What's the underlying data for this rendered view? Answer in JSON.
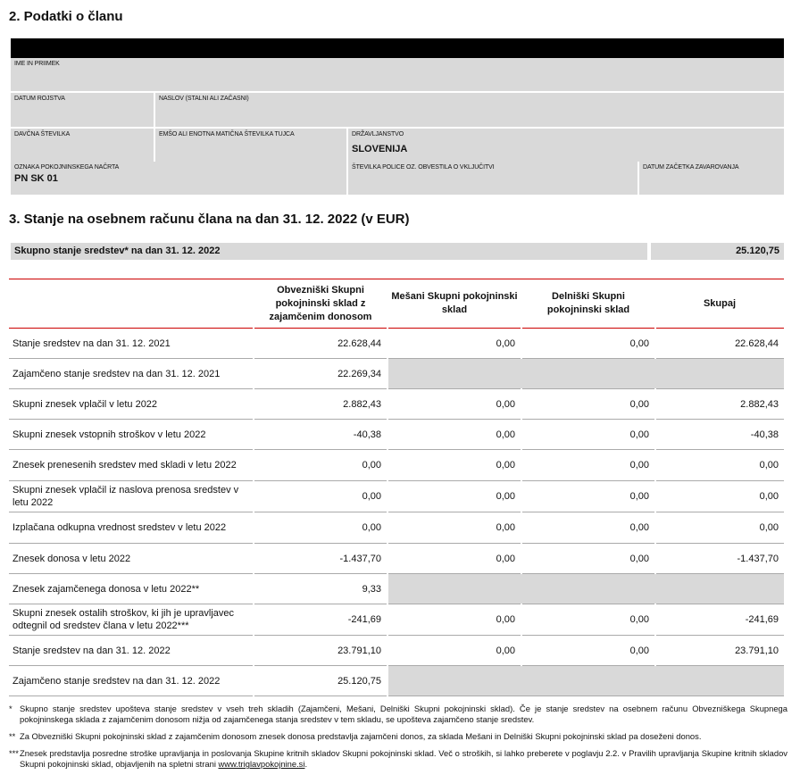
{
  "section2": {
    "title": "2.  Podatki o članu",
    "fields": {
      "name_label": "IME IN PRIIMEK",
      "birth_label": "DATUM ROJSTVA",
      "address_label": "NASLOV (STALNI ALI ZAČASNI)",
      "tax_label": "DAVČNA ŠTEVILKA",
      "emso_label": "EMŠO ALI ENOTNA MATIČNA ŠTEVILKA TUJCA",
      "citizenship_label": "DRŽAVLJANSTVO",
      "citizenship_value": "SLOVENIJA",
      "plan_label": "OZNAKA POKOJNINSKEGA NAČRTA",
      "plan_value": "PN SK 01",
      "policy_label": "ŠTEVILKA POLICE OZ. OBVESTILA O VKLJUČITVI",
      "start_label": "DATUM ZAČETKA ZAVAROVANJA"
    }
  },
  "section3": {
    "title": "3.  Stanje na osebnem računu člana na dan 31. 12. 2022 (v EUR)",
    "summary_label": "Skupno stanje sredstev* na dan 31. 12. 2022",
    "summary_value": "25.120,75",
    "columns": [
      "Obvezniški Skupni pokojninski sklad z zajamčenim donosom",
      "Mešani Skupni pokojninski sklad",
      "Delniški Skupni pokojninski sklad",
      "Skupaj"
    ],
    "rows": [
      {
        "label": "Stanje sredstev na dan 31. 12. 2021",
        "values": [
          "22.628,44",
          "0,00",
          "0,00",
          "22.628,44"
        ]
      },
      {
        "label": "Zajamčeno stanje sredstev na dan 31. 12. 2021",
        "values": [
          "22.269,34",
          "",
          "",
          ""
        ]
      },
      {
        "label": "Skupni znesek vplačil v letu 2022",
        "values": [
          "2.882,43",
          "0,00",
          "0,00",
          "2.882,43"
        ]
      },
      {
        "label": "Skupni znesek vstopnih stroškov v letu 2022",
        "values": [
          "-40,38",
          "0,00",
          "0,00",
          "-40,38"
        ]
      },
      {
        "label": "Znesek prenesenih sredstev med skladi v letu 2022",
        "values": [
          "0,00",
          "0,00",
          "0,00",
          "0,00"
        ]
      },
      {
        "label": "Skupni znesek vplačil iz naslova prenosa sredstev v letu 2022",
        "values": [
          "0,00",
          "0,00",
          "0,00",
          "0,00"
        ]
      },
      {
        "label": "Izplačana odkupna vrednost sredstev v letu 2022",
        "values": [
          "0,00",
          "0,00",
          "0,00",
          "0,00"
        ]
      },
      {
        "label": "Znesek donosa v letu 2022",
        "values": [
          "-1.437,70",
          "0,00",
          "0,00",
          "-1.437,70"
        ]
      },
      {
        "label": "Znesek zajamčenega donosa v letu 2022**",
        "values": [
          "9,33",
          "",
          "",
          ""
        ]
      },
      {
        "label": "Skupni znesek ostalih stroškov, ki jih je upravljavec odtegnil od sredstev člana v letu 2022***",
        "values": [
          "-241,69",
          "0,00",
          "0,00",
          "-241,69"
        ]
      },
      {
        "label": "Stanje sredstev na dan 31. 12. 2022",
        "values": [
          "23.791,10",
          "0,00",
          "0,00",
          "23.791,10"
        ]
      },
      {
        "label": "Zajamčeno stanje sredstev na dan 31. 12. 2022",
        "values": [
          "25.120,75",
          "",
          "",
          ""
        ]
      }
    ]
  },
  "footnotes": [
    {
      "mark": "*",
      "text": "Skupno stanje sredstev upošteva stanje sredstev v vseh treh skladih (Zajamčeni, Mešani, Delniški Skupni pokojninski sklad). Če je stanje sredstev na osebnem računu Obvezniškega Skupnega pokojninskega sklada z zajamčenim donosom nižja od zajamčenega stanja sredstev v tem skladu, se upošteva zajamčeno stanje sredstev."
    },
    {
      "mark": "**",
      "text": "Za Obvezniški Skupni pokojninski sklad z zajamčenim donosom znesek donosa predstavlja zajamčeni donos, za sklada Mešani in Delniški Skupni pokojninski sklad pa doseženi donos."
    },
    {
      "mark": "***",
      "text": "Znesek predstavlja posredne stroške upravljanja in poslovanja Skupine kritnih skladov Skupni pokojninski sklad. Več o stroških, si lahko preberete v poglavju 2.2. v Pravilih upravljanja Skupine kritnih skladov Skupni pokojninski sklad, objavljenih na spletni strani",
      "link": "www.triglavpokojnine.si",
      "tail": "."
    }
  ]
}
